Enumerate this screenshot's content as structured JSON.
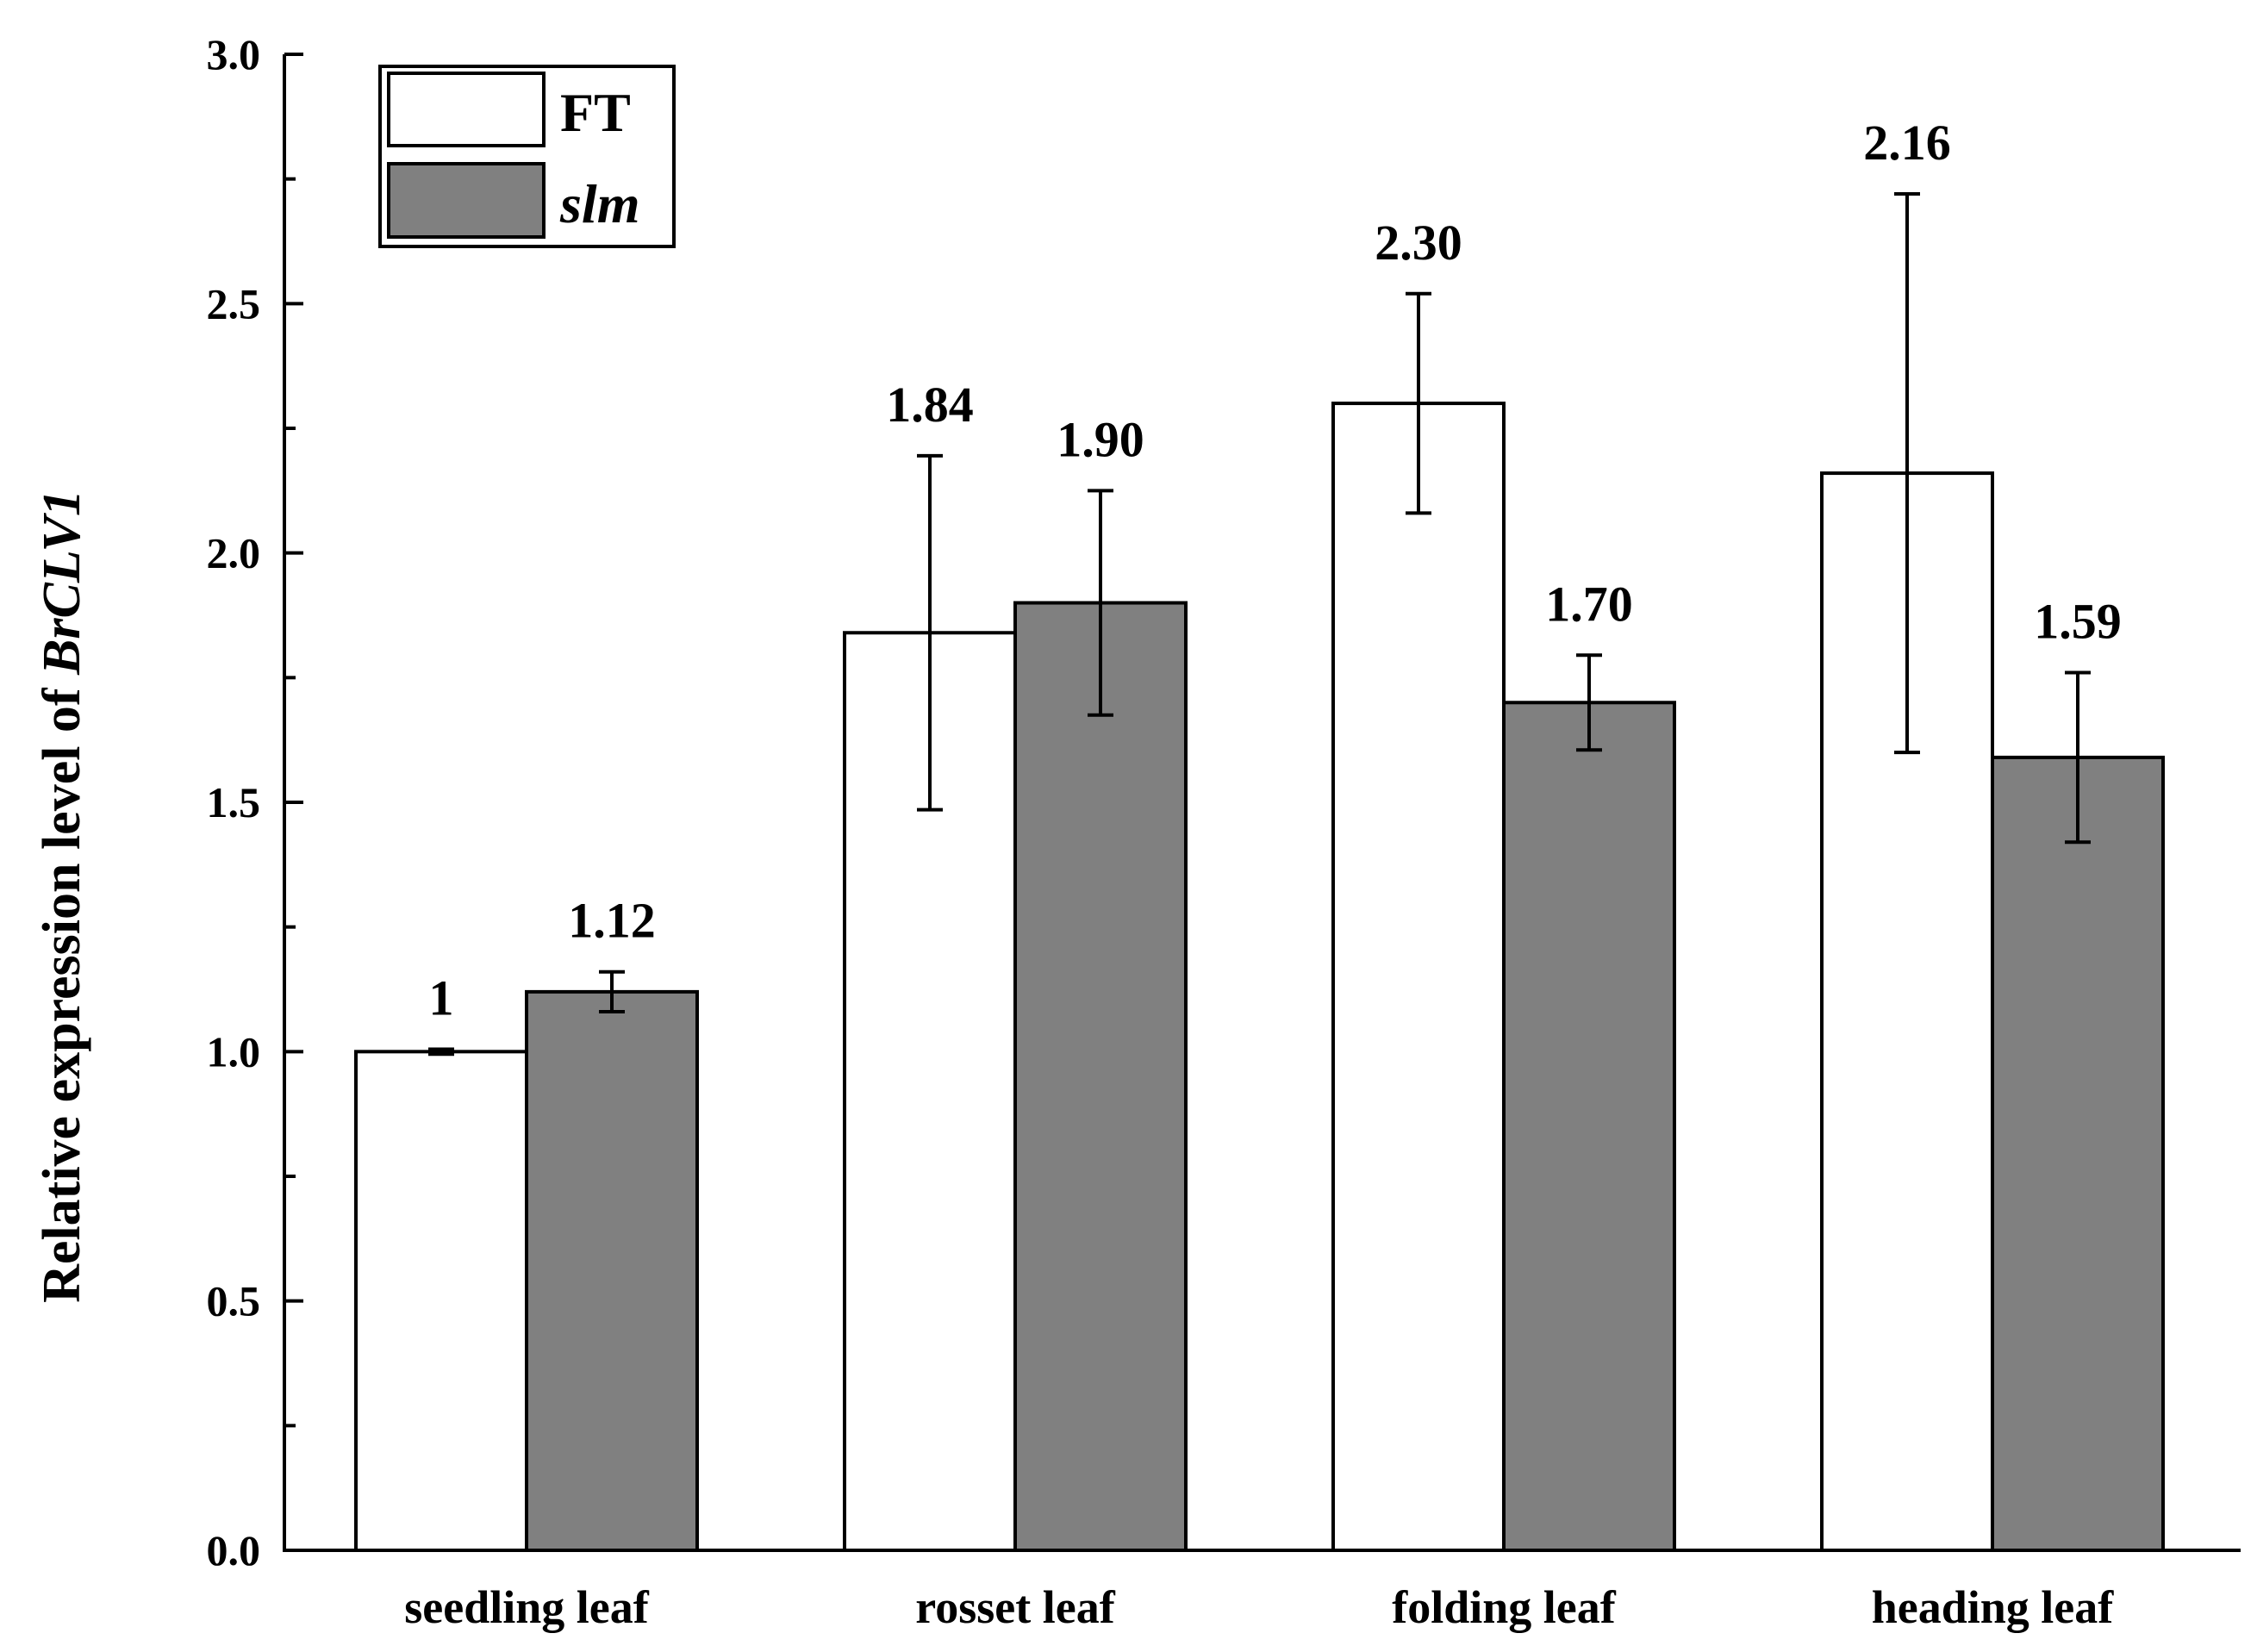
{
  "chart_data": {
    "type": "bar",
    "title": "",
    "xlabel": "",
    "ylabel": {
      "prefix": "Relative expression level of ",
      "gene": "BrCLV1"
    },
    "ylim": [
      0,
      3.0
    ],
    "yticks": [
      "0.0",
      "0.5",
      "1.0",
      "1.5",
      "2.0",
      "2.5",
      "3.0"
    ],
    "categories": [
      "seedling leaf",
      "rosset leaf",
      "folding leaf",
      "heading leaf"
    ],
    "legend_position": "top-left",
    "series": [
      {
        "name": "FT",
        "italic": false,
        "color": "#ffffff",
        "values": [
          1.0,
          1.84,
          2.3,
          2.16
        ],
        "labels": [
          "1",
          "1.84",
          "2.30",
          "2.16"
        ],
        "errors": [
          0.005,
          0.355,
          0.22,
          0.56
        ]
      },
      {
        "name": "slm",
        "italic": true,
        "color": "#808080",
        "values": [
          1.12,
          1.9,
          1.7,
          1.59
        ],
        "labels": [
          "1.12",
          "1.90",
          "1.70",
          "1.59"
        ],
        "errors": [
          0.04,
          0.225,
          0.095,
          0.17
        ]
      }
    ]
  }
}
